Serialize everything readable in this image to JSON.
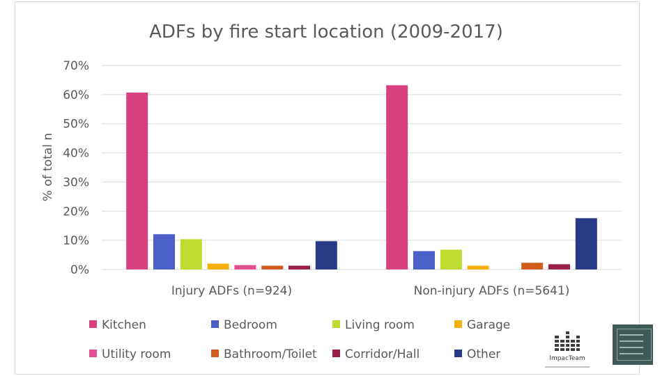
{
  "chart_data": {
    "type": "bar",
    "title": "ADFs by fire start location (2009-2017)",
    "ylabel": "% of total n",
    "xlabel": "",
    "ylim": [
      0,
      70
    ],
    "yticks": [
      "0%",
      "10%",
      "20%",
      "30%",
      "40%",
      "50%",
      "60%",
      "70%"
    ],
    "ytick_values": [
      0,
      10,
      20,
      30,
      40,
      50,
      60,
      70
    ],
    "grid": true,
    "legend_position": "bottom",
    "categories": [
      "Injury ADFs (n=924)",
      "Non-injury ADFs (n=5641)"
    ],
    "series": [
      {
        "name": "Kitchen",
        "color": "#d9407f",
        "values": [
          60.7,
          63.2
        ]
      },
      {
        "name": "Bedroom",
        "color": "#4a5fc8",
        "values": [
          12.1,
          6.3
        ]
      },
      {
        "name": "Living room",
        "color": "#bedb2f",
        "values": [
          10.4,
          6.8
        ]
      },
      {
        "name": "Garage",
        "color": "#f5b10a",
        "values": [
          2.0,
          1.3
        ]
      },
      {
        "name": "Utility room",
        "color": "#e34e93",
        "values": [
          1.5,
          0
        ]
      },
      {
        "name": "Bathroom/Toilet",
        "color": "#d25b1e",
        "values": [
          1.3,
          2.3
        ]
      },
      {
        "name": "Corridor/Hall",
        "color": "#9b1d4b",
        "values": [
          1.3,
          1.8
        ]
      },
      {
        "name": "Other",
        "color": "#283a85",
        "values": [
          9.7,
          17.6
        ]
      }
    ]
  },
  "logos": {
    "impacteam_name": "ImpacTeam"
  }
}
